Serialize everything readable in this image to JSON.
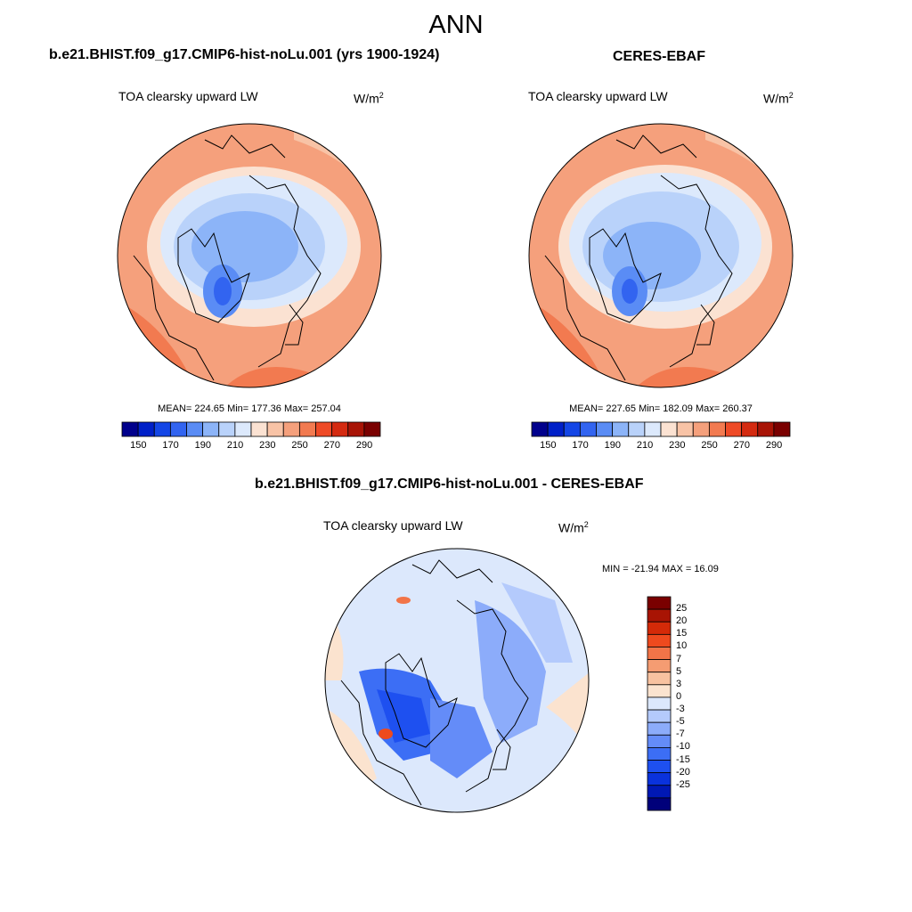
{
  "page": {
    "season": "ANN"
  },
  "panels": [
    {
      "title": "b.e21.BHIST.f09_g17.CMIP6-hist-noLu.001 (yrs 1900-1924)",
      "variable": "TOA clearsky upward LW",
      "units_base": "W/m",
      "units_exp": "2",
      "stats": "MEAN= 224.65  Min= 177.36  Max= 257.04"
    },
    {
      "title": "CERES-EBAF",
      "variable": "TOA clearsky upward LW",
      "units_base": "W/m",
      "units_exp": "2",
      "stats": "MEAN= 227.65  Min= 182.09  Max= 260.37"
    },
    {
      "title": "b.e21.BHIST.f09_g17.CMIP6-hist-noLu.001 - CERES-EBAF",
      "variable": "TOA clearsky upward LW",
      "units_base": "W/m",
      "units_exp": "2",
      "stats": "MIN = -21.94 MAX =  16.09"
    }
  ],
  "colorbars": {
    "field": {
      "colors": [
        "#00008c",
        "#0020c8",
        "#1446e6",
        "#3264f0",
        "#5a8cf5",
        "#8cb4f8",
        "#b9d2fa",
        "#dce9fc",
        "#fbe2d2",
        "#f8c3a6",
        "#f5a07c",
        "#f27a50",
        "#ee4a26",
        "#d42a10",
        "#a81406",
        "#7a0000"
      ],
      "tick_labels": [
        "150",
        "170",
        "190",
        "210",
        "230",
        "250",
        "270",
        "290"
      ]
    },
    "diff": {
      "colors": [
        "#00007a",
        "#0018b4",
        "#0a32dc",
        "#1e50f0",
        "#3c6ef5",
        "#648cf8",
        "#8cacfa",
        "#b4cafc",
        "#dce8fc",
        "#fbe3cf",
        "#f8c2a0",
        "#f59c72",
        "#f27448",
        "#ee4a1e",
        "#d42a08",
        "#a81404",
        "#7a0000"
      ],
      "tick_labels": [
        "25",
        "20",
        "15",
        "10",
        "7",
        "5",
        "3",
        "0",
        "-3",
        "-5",
        "-7",
        "-10",
        "-15",
        "-20",
        "-25"
      ]
    }
  },
  "legend_colors": {
    "land_outline": "#000000"
  }
}
